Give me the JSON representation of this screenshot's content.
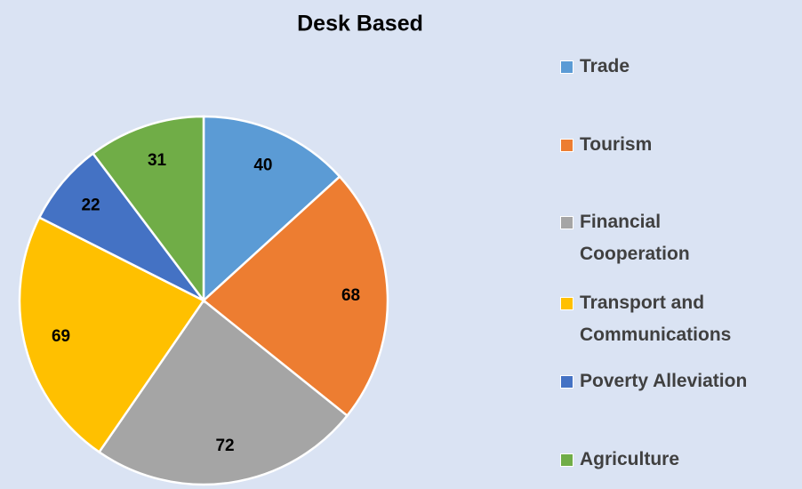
{
  "chart_data": {
    "type": "pie",
    "title": "Desk Based",
    "categories": [
      "Trade",
      "Tourism",
      "Financial Cooperation",
      "Transport and Communications",
      "Poverty Alleviation",
      "Agriculture"
    ],
    "values": [
      40,
      68,
      72,
      69,
      22,
      31
    ],
    "colors": [
      "#5b9bd5",
      "#ed7d31",
      "#a5a5a5",
      "#ffc000",
      "#4472c4",
      "#70ad47"
    ],
    "legend": "right"
  }
}
